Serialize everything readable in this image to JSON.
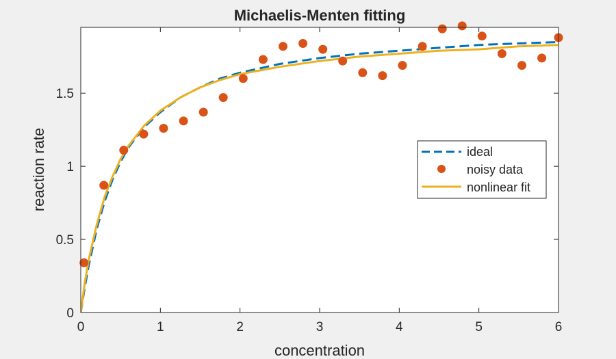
{
  "chart_data": {
    "type": "line",
    "title": "Michaelis-Menten fitting",
    "xlabel": "concentration",
    "ylabel": "reaction rate",
    "xlim": [
      0,
      6
    ],
    "ylim": [
      0,
      1.95
    ],
    "xticks": [
      0,
      1,
      2,
      3,
      4,
      5,
      6
    ],
    "xtick_labels": [
      "0",
      "1",
      "2",
      "3",
      "4",
      "5",
      "6"
    ],
    "yticks": [
      0,
      0.5,
      1,
      1.5
    ],
    "ytick_labels": [
      "0",
      "0.5",
      "1",
      "1.5"
    ],
    "grid": false,
    "legend_position": "right",
    "series": [
      {
        "name": "ideal",
        "kind": "line",
        "style": "dashed",
        "color": "#0072BD",
        "x": [
          0,
          0.05,
          0.1,
          0.2,
          0.3,
          0.4,
          0.5,
          0.6,
          0.8,
          1.0,
          1.25,
          1.5,
          1.75,
          2.0,
          2.5,
          3.0,
          3.5,
          4.0,
          4.5,
          5.0,
          5.5,
          6.0
        ],
        "y": [
          0,
          0.17,
          0.32,
          0.57,
          0.76,
          0.91,
          1.03,
          1.13,
          1.27,
          1.37,
          1.47,
          1.54,
          1.6,
          1.64,
          1.7,
          1.74,
          1.77,
          1.79,
          1.81,
          1.83,
          1.84,
          1.85
        ]
      },
      {
        "name": "noisy data",
        "kind": "scatter",
        "color": "#D95319",
        "x": [
          0.04,
          0.29,
          0.54,
          0.79,
          1.04,
          1.29,
          1.54,
          1.79,
          2.04,
          2.29,
          2.54,
          2.79,
          3.04,
          3.29,
          3.54,
          3.79,
          4.04,
          4.29,
          4.54,
          4.79,
          5.04,
          5.29,
          5.54,
          5.79,
          6.0
        ],
        "y": [
          0.34,
          0.87,
          1.11,
          1.22,
          1.26,
          1.31,
          1.37,
          1.47,
          1.6,
          1.73,
          1.82,
          1.84,
          1.8,
          1.72,
          1.64,
          1.62,
          1.69,
          1.82,
          1.94,
          1.96,
          1.89,
          1.77,
          1.69,
          1.74,
          1.88
        ]
      },
      {
        "name": "nonlinear fit",
        "kind": "line",
        "style": "solid",
        "color": "#EDB120",
        "x": [
          0,
          0.05,
          0.1,
          0.2,
          0.3,
          0.4,
          0.5,
          0.6,
          0.8,
          1.0,
          1.25,
          1.5,
          1.75,
          2.0,
          2.5,
          3.0,
          3.5,
          4.0,
          4.5,
          5.0,
          5.5,
          6.0
        ],
        "y": [
          0,
          0.2,
          0.36,
          0.6,
          0.79,
          0.93,
          1.05,
          1.14,
          1.28,
          1.38,
          1.47,
          1.54,
          1.59,
          1.63,
          1.68,
          1.72,
          1.75,
          1.77,
          1.79,
          1.8,
          1.82,
          1.83
        ]
      }
    ]
  }
}
